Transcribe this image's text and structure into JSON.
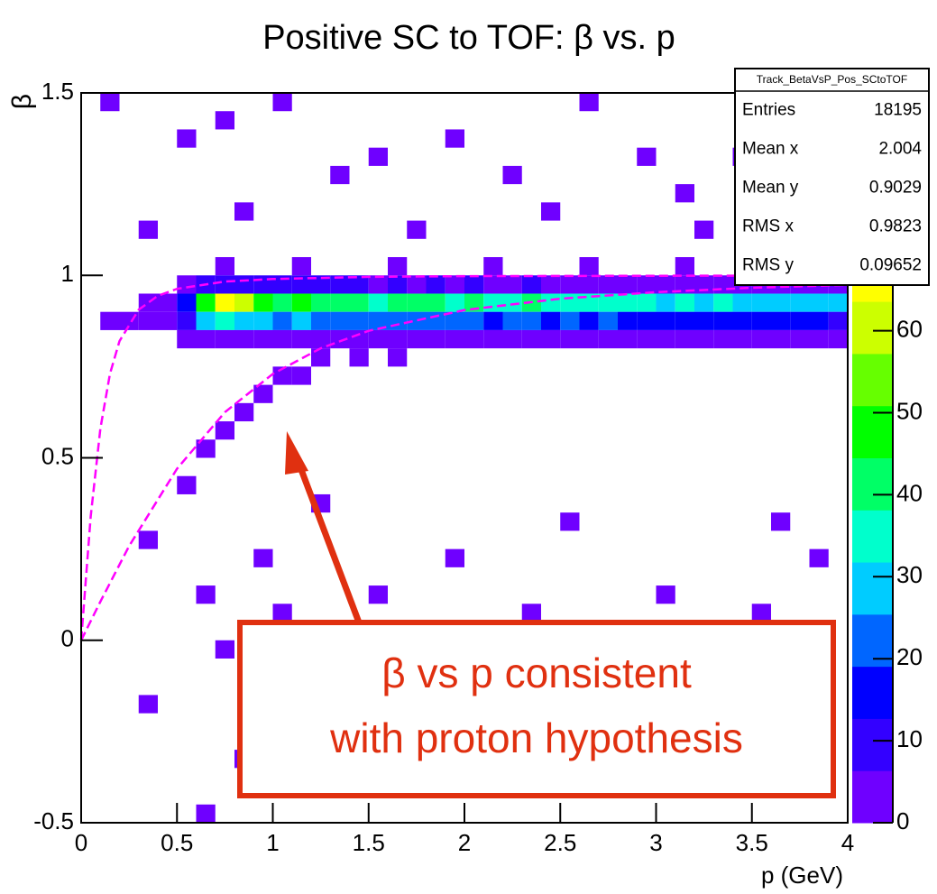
{
  "chart_data": {
    "type": "heatmap",
    "title": "Positive SC to TOF: β vs. p",
    "x_label": "p (GeV)",
    "y_label": "β",
    "xlim": [
      0,
      4
    ],
    "ylim": [
      -0.5,
      1.5
    ],
    "xticks": [
      0,
      0.5,
      1,
      1.5,
      2,
      2.5,
      3,
      3.5,
      4
    ],
    "yticks": [
      -0.5,
      0,
      0.5,
      1,
      1.5
    ],
    "zlim": [
      0,
      89
    ],
    "zticks": [
      0,
      10,
      20,
      30,
      40,
      50,
      60
    ],
    "bin_size": [
      0.1,
      0.05
    ],
    "palette": [
      "#6f00ff",
      "#3300ff",
      "#0000ff",
      "#0066ff",
      "#00ccff",
      "#00ffcc",
      "#00ff66",
      "#00ff00",
      "#66ff00",
      "#ccff00",
      "#ffff00",
      "#ffcc00",
      "#ff6600",
      "#ff0000"
    ],
    "cells": [
      [
        0.5,
        0.9,
        15
      ],
      [
        0.6,
        0.9,
        48
      ],
      [
        0.7,
        0.9,
        66
      ],
      [
        0.8,
        0.9,
        58
      ],
      [
        0.9,
        0.9,
        50
      ],
      [
        1.0,
        0.9,
        44
      ],
      [
        1.1,
        0.9,
        46
      ],
      [
        1.2,
        0.9,
        42
      ],
      [
        1.3,
        0.9,
        40
      ],
      [
        1.4,
        0.9,
        44
      ],
      [
        1.5,
        0.9,
        38
      ],
      [
        1.6,
        0.9,
        41
      ],
      [
        1.7,
        0.9,
        39
      ],
      [
        1.8,
        0.9,
        43
      ],
      [
        1.9,
        0.9,
        37
      ],
      [
        2.0,
        0.9,
        40
      ],
      [
        2.1,
        0.9,
        36
      ],
      [
        2.2,
        0.9,
        38
      ],
      [
        2.3,
        0.9,
        41
      ],
      [
        2.4,
        0.9,
        35
      ],
      [
        2.5,
        0.9,
        37
      ],
      [
        2.6,
        0.9,
        34
      ],
      [
        2.7,
        0.9,
        36
      ],
      [
        2.8,
        0.9,
        33
      ],
      [
        2.9,
        0.9,
        35
      ],
      [
        3.0,
        0.9,
        31
      ],
      [
        3.1,
        0.9,
        33
      ],
      [
        3.2,
        0.9,
        30
      ],
      [
        3.3,
        0.9,
        32
      ],
      [
        3.4,
        0.9,
        29
      ],
      [
        3.5,
        0.9,
        31
      ],
      [
        3.6,
        0.9,
        28
      ],
      [
        3.7,
        0.9,
        30
      ],
      [
        3.8,
        0.9,
        27
      ],
      [
        3.9,
        0.9,
        26
      ],
      [
        0.5,
        0.85,
        10
      ],
      [
        0.6,
        0.85,
        28
      ],
      [
        0.7,
        0.85,
        35
      ],
      [
        0.8,
        0.85,
        30
      ],
      [
        0.9,
        0.85,
        27
      ],
      [
        1.0,
        0.85,
        25
      ],
      [
        1.1,
        0.85,
        26
      ],
      [
        1.2,
        0.85,
        24
      ],
      [
        1.3,
        0.85,
        22
      ],
      [
        1.4,
        0.85,
        25
      ],
      [
        1.5,
        0.85,
        21
      ],
      [
        1.6,
        0.85,
        23
      ],
      [
        1.7,
        0.85,
        22
      ],
      [
        1.8,
        0.85,
        24
      ],
      [
        1.9,
        0.85,
        20
      ],
      [
        2.0,
        0.85,
        22
      ],
      [
        2.1,
        0.85,
        19
      ],
      [
        2.2,
        0.85,
        21
      ],
      [
        2.3,
        0.85,
        23
      ],
      [
        2.4,
        0.85,
        18
      ],
      [
        2.5,
        0.85,
        20
      ],
      [
        2.6,
        0.85,
        19
      ],
      [
        2.7,
        0.85,
        21
      ],
      [
        2.8,
        0.85,
        17
      ],
      [
        2.9,
        0.85,
        19
      ],
      [
        3.0,
        0.85,
        16
      ],
      [
        3.1,
        0.85,
        18
      ],
      [
        3.2,
        0.85,
        15
      ],
      [
        3.3,
        0.85,
        17
      ],
      [
        3.4,
        0.85,
        16
      ],
      [
        3.5,
        0.85,
        15
      ],
      [
        3.6,
        0.85,
        14
      ],
      [
        3.7,
        0.85,
        16
      ],
      [
        3.8,
        0.85,
        13
      ],
      [
        3.9,
        0.85,
        12
      ],
      [
        0.5,
        0.95,
        4
      ],
      [
        0.6,
        0.95,
        9
      ],
      [
        0.7,
        0.95,
        12
      ],
      [
        0.8,
        0.95,
        10
      ],
      [
        0.9,
        0.95,
        8
      ],
      [
        1.0,
        0.95,
        9
      ],
      [
        1.1,
        0.95,
        7
      ],
      [
        1.2,
        0.95,
        8
      ],
      [
        1.3,
        0.95,
        7
      ],
      [
        1.4,
        0.95,
        8
      ],
      [
        1.5,
        0.95,
        6
      ],
      [
        1.6,
        0.95,
        7
      ],
      [
        1.7,
        0.95,
        6
      ],
      [
        1.8,
        0.95,
        8
      ],
      [
        1.9,
        0.95,
        6
      ],
      [
        2.0,
        0.95,
        7
      ],
      [
        2.1,
        0.95,
        5
      ],
      [
        2.2,
        0.95,
        6
      ],
      [
        2.3,
        0.95,
        7
      ],
      [
        2.4,
        0.95,
        5
      ],
      [
        2.5,
        0.95,
        6
      ],
      [
        2.6,
        0.95,
        5
      ],
      [
        2.7,
        0.95,
        6
      ],
      [
        2.8,
        0.95,
        4
      ],
      [
        2.9,
        0.95,
        5
      ],
      [
        3.0,
        0.95,
        4
      ],
      [
        3.1,
        0.95,
        5
      ],
      [
        3.2,
        0.95,
        4
      ],
      [
        3.3,
        0.95,
        5
      ],
      [
        3.4,
        0.95,
        3
      ],
      [
        3.5,
        0.95,
        4
      ],
      [
        3.6,
        0.95,
        3
      ],
      [
        3.7,
        0.95,
        4
      ],
      [
        3.8,
        0.95,
        3
      ],
      [
        3.9,
        0.95,
        3
      ],
      [
        0.5,
        0.8,
        2
      ],
      [
        0.6,
        0.8,
        5
      ],
      [
        0.7,
        0.8,
        6
      ],
      [
        0.8,
        0.8,
        5
      ],
      [
        0.9,
        0.8,
        4
      ],
      [
        1.0,
        0.8,
        5
      ],
      [
        1.1,
        0.8,
        3
      ],
      [
        1.2,
        0.8,
        4
      ],
      [
        1.3,
        0.8,
        3
      ],
      [
        1.4,
        0.8,
        4
      ],
      [
        1.5,
        0.8,
        3
      ],
      [
        1.6,
        0.8,
        3
      ],
      [
        1.7,
        0.8,
        2
      ],
      [
        1.8,
        0.8,
        4
      ],
      [
        1.9,
        0.8,
        3
      ],
      [
        2.0,
        0.8,
        3
      ],
      [
        2.1,
        0.8,
        2
      ],
      [
        2.2,
        0.8,
        3
      ],
      [
        2.3,
        0.8,
        3
      ],
      [
        2.4,
        0.8,
        2
      ],
      [
        2.5,
        0.8,
        3
      ],
      [
        2.6,
        0.8,
        2
      ],
      [
        2.7,
        0.8,
        2
      ],
      [
        2.8,
        0.8,
        2
      ],
      [
        2.9,
        0.8,
        3
      ],
      [
        3.0,
        0.8,
        2
      ],
      [
        3.1,
        0.8,
        2
      ],
      [
        3.2,
        0.8,
        1
      ],
      [
        3.3,
        0.8,
        2
      ],
      [
        3.4,
        0.8,
        2
      ],
      [
        3.5,
        0.8,
        1
      ],
      [
        3.6,
        0.8,
        2
      ],
      [
        3.7,
        0.8,
        1
      ],
      [
        3.8,
        0.8,
        1
      ],
      [
        3.9,
        0.8,
        1
      ],
      [
        0.7,
        1.0,
        2
      ],
      [
        1.1,
        1.0,
        2
      ],
      [
        1.6,
        1.0,
        2
      ],
      [
        2.1,
        1.0,
        2
      ],
      [
        2.6,
        1.0,
        2
      ],
      [
        3.1,
        1.0,
        2
      ],
      [
        3.6,
        1.0,
        2
      ],
      [
        0.1,
        0.85,
        1
      ],
      [
        0.2,
        0.85,
        2
      ],
      [
        0.3,
        0.85,
        3
      ],
      [
        0.4,
        0.85,
        5
      ],
      [
        0.3,
        0.9,
        2
      ],
      [
        0.4,
        0.9,
        4
      ],
      [
        0.8,
        0.6,
        2
      ],
      [
        0.9,
        0.65,
        2
      ],
      [
        1.0,
        0.7,
        2
      ],
      [
        1.1,
        0.7,
        1
      ],
      [
        1.2,
        0.75,
        2
      ],
      [
        0.7,
        0.55,
        1
      ],
      [
        0.6,
        0.5,
        1
      ],
      [
        1.4,
        0.75,
        2
      ],
      [
        1.6,
        0.75,
        1
      ],
      [
        0.1,
        1.45,
        1
      ],
      [
        0.5,
        1.35,
        1
      ],
      [
        0.7,
        1.4,
        1
      ],
      [
        1.0,
        1.45,
        1
      ],
      [
        1.3,
        1.25,
        1
      ],
      [
        1.5,
        1.3,
        1
      ],
      [
        1.9,
        1.35,
        1
      ],
      [
        2.2,
        1.25,
        1
      ],
      [
        2.6,
        1.45,
        1
      ],
      [
        2.9,
        1.3,
        1
      ],
      [
        3.1,
        1.2,
        1
      ],
      [
        3.4,
        1.3,
        1
      ],
      [
        0.3,
        1.1,
        1
      ],
      [
        0.8,
        1.15,
        1
      ],
      [
        1.7,
        1.1,
        1
      ],
      [
        2.4,
        1.15,
        1
      ],
      [
        3.2,
        1.1,
        1
      ],
      [
        3.7,
        1.15,
        1
      ],
      [
        0.5,
        0.4,
        1
      ],
      [
        1.2,
        0.35,
        1
      ],
      [
        2.5,
        0.3,
        1
      ],
      [
        3.6,
        0.3,
        1
      ],
      [
        0.3,
        0.25,
        1
      ],
      [
        0.9,
        0.2,
        1
      ],
      [
        1.9,
        0.2,
        1
      ],
      [
        3.8,
        0.2,
        1
      ],
      [
        0.6,
        0.1,
        1
      ],
      [
        1.0,
        0.05,
        1
      ],
      [
        1.5,
        0.1,
        1
      ],
      [
        2.3,
        0.05,
        1
      ],
      [
        3.0,
        0.1,
        1
      ],
      [
        3.5,
        0.05,
        1
      ],
      [
        0.7,
        -0.05,
        1
      ],
      [
        0.3,
        -0.2,
        1
      ],
      [
        0.8,
        -0.35,
        1
      ],
      [
        0.6,
        -0.5,
        1
      ]
    ],
    "curves": [
      {
        "color": "#ff00ff",
        "x": [
          0,
          0.05,
          0.1,
          0.15,
          0.2,
          0.3,
          0.4,
          0.5,
          0.75,
          1,
          1.5,
          2,
          3,
          4
        ],
        "values": [
          0,
          0.34,
          0.58,
          0.73,
          0.82,
          0.906,
          0.944,
          0.963,
          0.983,
          0.99,
          0.996,
          0.998,
          0.999,
          0.9994
        ]
      },
      {
        "color": "#ff00ff",
        "x": [
          0,
          0.1,
          0.25,
          0.5,
          0.75,
          1,
          1.25,
          1.5,
          2,
          2.5,
          3,
          3.5,
          4
        ],
        "values": [
          0,
          0.106,
          0.258,
          0.47,
          0.625,
          0.73,
          0.8,
          0.848,
          0.905,
          0.936,
          0.954,
          0.966,
          0.974
        ]
      }
    ],
    "stats": {
      "title": "Track_BetaVsP_Pos_SCtoTOF",
      "rows": [
        [
          "Entries",
          "18195"
        ],
        [
          "Mean x",
          "2.004"
        ],
        [
          "Mean y",
          "0.9029"
        ],
        [
          "RMS x",
          "0.9823"
        ],
        [
          "RMS y",
          "0.09652"
        ]
      ]
    },
    "annotation": {
      "lines": [
        "β vs p consistent",
        "with proton hypothesis"
      ],
      "color": "#e03010"
    }
  }
}
